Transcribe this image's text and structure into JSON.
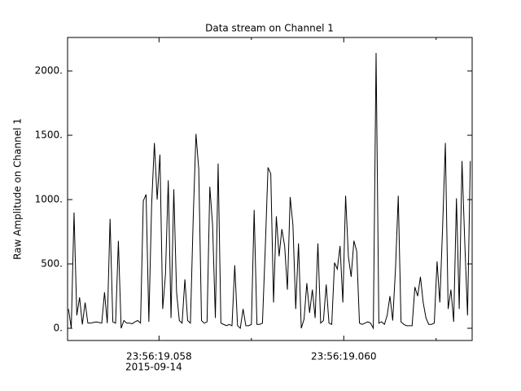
{
  "chart_data": {
    "type": "line",
    "title": "Data stream on Channel 1",
    "ylabel": "Raw Amplitude on Channel 1",
    "x_offset_label": "2015-09-14",
    "x": [
      19.05702,
      19.05705,
      19.05708,
      19.05711,
      19.05714,
      19.05717,
      19.0572,
      19.05723,
      19.05726,
      19.05729,
      19.05732,
      19.05735,
      19.05738,
      19.05741,
      19.05744,
      19.05747,
      19.0575,
      19.05753,
      19.05756,
      19.05759,
      19.05762,
      19.05765,
      19.05768,
      19.05771,
      19.05774,
      19.05777,
      19.0578,
      19.05783,
      19.05786,
      19.05789,
      19.05792,
      19.05795,
      19.05798,
      19.05801,
      19.05804,
      19.05807,
      19.0581,
      19.05813,
      19.05816,
      19.05819,
      19.05822,
      19.05825,
      19.05828,
      19.05831,
      19.05834,
      19.05837,
      19.0584,
      19.05843,
      19.05846,
      19.05849,
      19.05852,
      19.05855,
      19.05858,
      19.05861,
      19.05864,
      19.05867,
      19.0587,
      19.05873,
      19.05876,
      19.05879,
      19.05882,
      19.05885,
      19.05888,
      19.05891,
      19.05894,
      19.05897,
      19.059,
      19.05903,
      19.05906,
      19.05909,
      19.05912,
      19.05915,
      19.05918,
      19.05921,
      19.05924,
      19.05927,
      19.0593,
      19.05933,
      19.05936,
      19.05939,
      19.05942,
      19.05945,
      19.05948,
      19.05951,
      19.05954,
      19.05957,
      19.0596,
      19.05963,
      19.05966,
      19.05969,
      19.05972,
      19.05975,
      19.05978,
      19.05981,
      19.05984,
      19.05987,
      19.0599,
      19.05993,
      19.05996,
      19.05999,
      19.06002,
      19.06005,
      19.06008,
      19.06011,
      19.06014,
      19.06017,
      19.0602,
      19.06023,
      19.06026,
      19.06029,
      19.06032,
      19.06035,
      19.06038,
      19.06041,
      19.06044,
      19.06047,
      19.0605,
      19.06053,
      19.06056,
      19.06059,
      19.06062,
      19.06065,
      19.06068,
      19.06071,
      19.06074,
      19.06077,
      19.0608,
      19.06083,
      19.06086,
      19.06089,
      19.06092,
      19.06095,
      19.06098,
      19.06101,
      19.06104,
      19.06107,
      19.0611,
      19.06113,
      19.06116,
      19.06119,
      19.06122,
      19.06125,
      19.06128,
      19.06131,
      19.06134,
      19.06137
    ],
    "series": [
      {
        "name": "Channel 1",
        "color": "#000000",
        "values": [
          150,
          0,
          900,
          100,
          240,
          30,
          200,
          40,
          40,
          45,
          50,
          45,
          40,
          280,
          40,
          850,
          50,
          40,
          680,
          0,
          60,
          40,
          40,
          35,
          50,
          60,
          40,
          990,
          1040,
          50,
          960,
          1440,
          1000,
          1350,
          150,
          420,
          1150,
          80,
          1080,
          280,
          60,
          40,
          380,
          60,
          40,
          850,
          1510,
          1240,
          60,
          40,
          50,
          1100,
          800,
          80,
          1280,
          40,
          30,
          20,
          30,
          20,
          490,
          20,
          0,
          150,
          20,
          20,
          30,
          920,
          30,
          30,
          40,
          620,
          1250,
          1200,
          200,
          870,
          560,
          770,
          640,
          300,
          1020,
          800,
          150,
          660,
          0,
          70,
          350,
          120,
          300,
          80,
          660,
          40,
          60,
          340,
          40,
          30,
          510,
          460,
          640,
          200,
          1030,
          560,
          400,
          680,
          600,
          40,
          30,
          40,
          50,
          40,
          0,
          2140,
          40,
          50,
          30,
          100,
          250,
          60,
          460,
          1030,
          50,
          30,
          20,
          20,
          20,
          320,
          250,
          400,
          200,
          80,
          30,
          30,
          40,
          520,
          200,
          780,
          1440,
          150,
          300,
          50,
          1010,
          150,
          1300,
          670,
          100,
          1300
        ]
      }
    ],
    "xlim": [
      19.05701,
      19.06139
    ],
    "ylim": [
      -95,
      2260
    ],
    "xticks": [
      {
        "value": 19.058,
        "label": "23:56:19.058"
      },
      {
        "value": 19.06,
        "label": "23:56:19.060"
      }
    ],
    "xminor_ticks": [
      19.059,
      19.061
    ],
    "yticks": [
      {
        "value": 0,
        "label": "0."
      },
      {
        "value": 500,
        "label": "500."
      },
      {
        "value": 1000,
        "label": "1000."
      },
      {
        "value": 1500,
        "label": "1500."
      },
      {
        "value": 2000,
        "label": "2000."
      }
    ]
  }
}
